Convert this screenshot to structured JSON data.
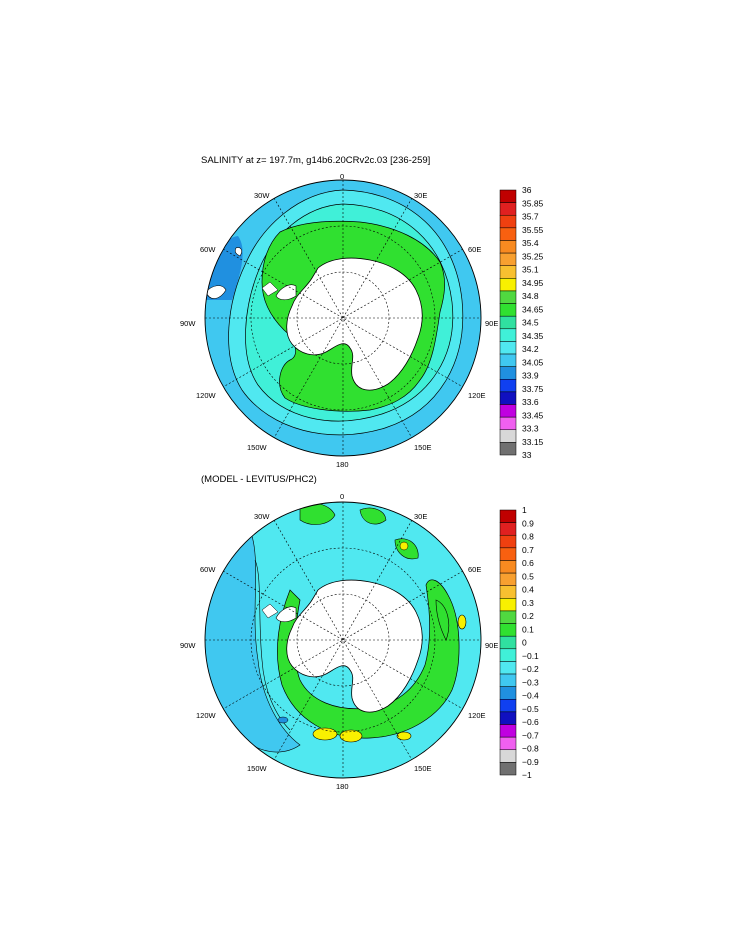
{
  "maps": [
    {
      "title": "SALINITY at z= 197.7m, g14b6.20CRv2c.03 [236-259]",
      "lon_labels": {
        "top": "0",
        "bottom": "180",
        "left": "90W",
        "right": "90E",
        "nw1": "30W",
        "nw2": "60W",
        "sw1": "120W",
        "sw2": "150W",
        "ne1": "30E",
        "ne2": "60E",
        "se1": "120E",
        "se2": "150E"
      },
      "colorbar": {
        "labels": [
          "36",
          "35.85",
          "35.7",
          "35.55",
          "35.4",
          "35.25",
          "35.1",
          "34.95",
          "34.8",
          "34.65",
          "34.5",
          "34.35",
          "34.2",
          "34.05",
          "33.9",
          "33.75",
          "33.6",
          "33.45",
          "33.3",
          "33.15",
          "33"
        ],
        "colors": [
          "#c00000",
          "#e02020",
          "#f04010",
          "#f86010",
          "#f88a20",
          "#f8a030",
          "#f8c030",
          "#f8f000",
          "#50d840",
          "#30e030",
          "#30e0a0",
          "#40f0d8",
          "#50e8f0",
          "#40c8f0",
          "#2090e0",
          "#1040f0",
          "#1010c0",
          "#c000e0",
          "#f060f0",
          "#d8d8d8",
          "#707070"
        ]
      },
      "fills": {
        "ocean_base": "#40c8f0",
        "ring_cyan": "#50e8f0",
        "ring_light": "#40f0d8",
        "green_band": "#30e030",
        "land": "#ffffff"
      }
    },
    {
      "title": "(MODEL - LEVITUS/PHC2)",
      "lon_labels": {
        "top": "0",
        "bottom": "180",
        "left": "90W",
        "right": "90E",
        "nw1": "30W",
        "nw2": "60W",
        "sw1": "120W",
        "sw2": "150W",
        "ne1": "30E",
        "ne2": "60E",
        "se1": "120E",
        "se2": "150E"
      },
      "colorbar": {
        "labels": [
          "1",
          "0.9",
          "0.8",
          "0.7",
          "0.6",
          "0.5",
          "0.4",
          "0.3",
          "0.2",
          "0.1",
          "0",
          "−0.1",
          "−0.2",
          "−0.3",
          "−0.4",
          "−0.5",
          "−0.6",
          "−0.7",
          "−0.8",
          "−0.9",
          "−1"
        ],
        "colors": [
          "#c00000",
          "#e02020",
          "#f04010",
          "#f86010",
          "#f88a20",
          "#f8a030",
          "#f8c030",
          "#f8f000",
          "#50d840",
          "#30e030",
          "#30e0a0",
          "#40f0d8",
          "#50e8f0",
          "#40c8f0",
          "#2090e0",
          "#1040f0",
          "#1010c0",
          "#c000e0",
          "#f060f0",
          "#d8d8d8",
          "#707070"
        ]
      },
      "fills": {
        "ocean_base": "#50e8f0",
        "ring_blue": "#40c8f0",
        "green_band": "#30e030",
        "yellow": "#f8f000",
        "land": "#ffffff"
      }
    }
  ]
}
